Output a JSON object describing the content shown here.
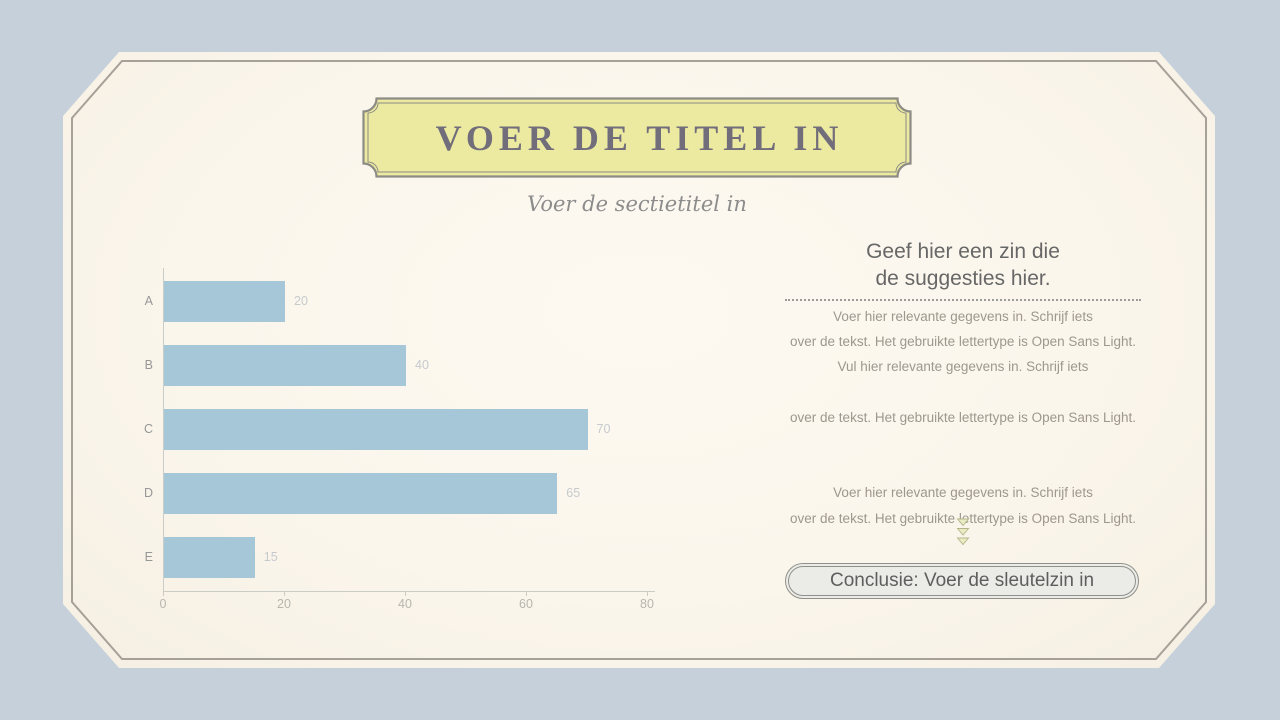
{
  "slide": {
    "title": "VOER DE TITEL IN",
    "section_subtitle": "Voer de sectietitel in"
  },
  "chart_data": {
    "type": "bar",
    "orientation": "horizontal",
    "title": "",
    "xlabel": "",
    "ylabel": "",
    "categories": [
      "A",
      "B",
      "C",
      "D",
      "E"
    ],
    "values": [
      20,
      40,
      70,
      65,
      15
    ],
    "value_labels": [
      "20",
      "40",
      "70",
      "65",
      "15"
    ],
    "xlim": [
      0,
      80
    ],
    "x_ticks": [
      0,
      20,
      40,
      60,
      80
    ],
    "grid": false,
    "legend": false,
    "bar_color": "#a6c7d8"
  },
  "right_panel": {
    "heading": "Geef hier een zin die\nde suggesties hier.",
    "body": "Voer hier relevante gegevens in. Schrijf iets\nover de tekst. Het gebruikte lettertype is Open Sans Light.\nVul hier relevante gegevens in. Schrijf iets\n\nover de tekst. Het gebruikte lettertype is Open Sans Light.\n\n\nVoer hier relevante gegevens in. Schrijf iets\nover de tekst. Het gebruikte lettertype is Open Sans Light.",
    "conclusion_label": "Conclusie: Voer de sleutelzin in"
  },
  "colors": {
    "page_bg": "#c5d0da",
    "card_bg": "#fbf6ec",
    "card_line": "#96938b",
    "banner_fill": "#ece9a1",
    "banner_line": "#8c8c85",
    "title_text": "#716d7a",
    "subtitle_text": "#8c8c8c",
    "bar": "#a6c7d8",
    "axis": "#ccccc6",
    "category_label": "#979797",
    "value_label": "#c6cace",
    "tick_label": "#b6b6b0",
    "heading_text": "#676767",
    "body_text": "#9d978e",
    "dot_line": "#9b9b98",
    "chevron_fill": "#e9ecc2",
    "chevron_stroke": "#b2b689",
    "pill_bg": "#ebebe8",
    "pill_border": "#90908a",
    "pill_text": "#5e5e5e"
  }
}
